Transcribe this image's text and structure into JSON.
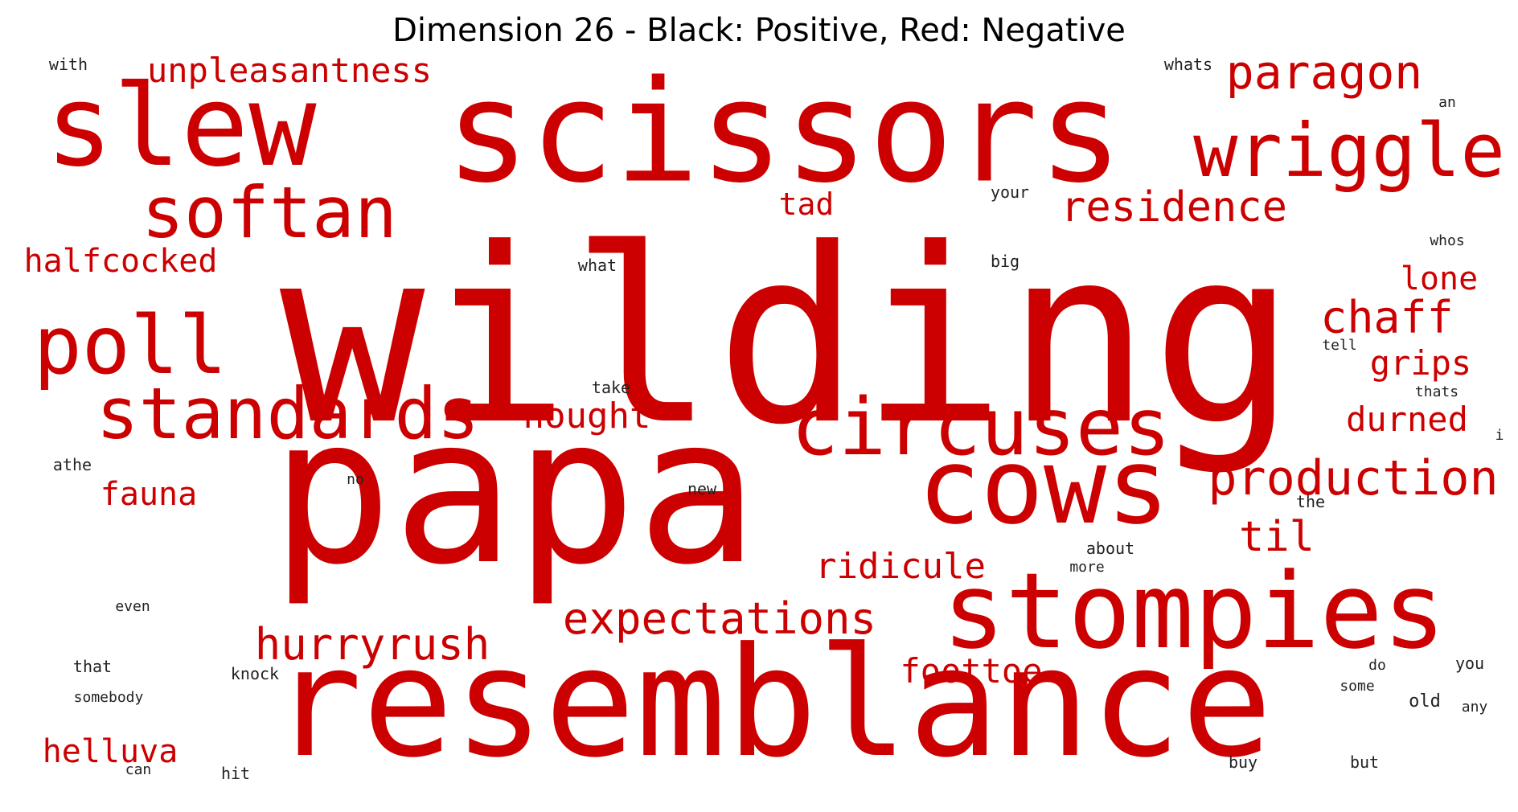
{
  "title": "Dimension 26 - Black: Positive, Red: Negative",
  "colors": {
    "positive": "#222222",
    "negative": "#cc0000"
  },
  "words": [
    {
      "text": "wilding",
      "sign": "negative"
    },
    {
      "text": "papa",
      "sign": "negative"
    },
    {
      "text": "resemblance",
      "sign": "negative"
    },
    {
      "text": "scissors",
      "sign": "negative"
    },
    {
      "text": "slew",
      "sign": "negative"
    },
    {
      "text": "stompies",
      "sign": "negative"
    },
    {
      "text": "cows",
      "sign": "negative"
    },
    {
      "text": "circuses",
      "sign": "negative"
    },
    {
      "text": "wriggle",
      "sign": "negative"
    },
    {
      "text": "poll",
      "sign": "negative"
    },
    {
      "text": "standards",
      "sign": "negative"
    },
    {
      "text": "softan",
      "sign": "negative"
    },
    {
      "text": "production",
      "sign": "negative"
    },
    {
      "text": "paragon",
      "sign": "negative"
    },
    {
      "text": "expectations",
      "sign": "negative"
    },
    {
      "text": "hurryrush",
      "sign": "negative"
    },
    {
      "text": "chaff",
      "sign": "negative"
    },
    {
      "text": "residence",
      "sign": "negative"
    },
    {
      "text": "unpleasantness",
      "sign": "negative"
    },
    {
      "text": "til",
      "sign": "negative"
    },
    {
      "text": "halfcocked",
      "sign": "negative"
    },
    {
      "text": "ridicule",
      "sign": "negative"
    },
    {
      "text": "nought",
      "sign": "negative"
    },
    {
      "text": "foottoe",
      "sign": "negative"
    },
    {
      "text": "helluva",
      "sign": "negative"
    },
    {
      "text": "durned",
      "sign": "negative"
    },
    {
      "text": "grips",
      "sign": "negative"
    },
    {
      "text": "lone",
      "sign": "negative"
    },
    {
      "text": "tad",
      "sign": "negative"
    },
    {
      "text": "fauna",
      "sign": "negative"
    },
    {
      "text": "with",
      "sign": "positive"
    },
    {
      "text": "whats",
      "sign": "positive"
    },
    {
      "text": "an",
      "sign": "positive"
    },
    {
      "text": "your",
      "sign": "positive"
    },
    {
      "text": "whos",
      "sign": "positive"
    },
    {
      "text": "what",
      "sign": "positive"
    },
    {
      "text": "big",
      "sign": "positive"
    },
    {
      "text": "tell",
      "sign": "positive"
    },
    {
      "text": "take",
      "sign": "positive"
    },
    {
      "text": "thats",
      "sign": "positive"
    },
    {
      "text": "i",
      "sign": "positive"
    },
    {
      "text": "athe",
      "sign": "positive"
    },
    {
      "text": "no",
      "sign": "positive"
    },
    {
      "text": "new",
      "sign": "positive"
    },
    {
      "text": "the",
      "sign": "positive"
    },
    {
      "text": "about",
      "sign": "positive"
    },
    {
      "text": "more",
      "sign": "positive"
    },
    {
      "text": "even",
      "sign": "positive"
    },
    {
      "text": "that",
      "sign": "positive"
    },
    {
      "text": "knock",
      "sign": "positive"
    },
    {
      "text": "do",
      "sign": "positive"
    },
    {
      "text": "you",
      "sign": "positive"
    },
    {
      "text": "somebody",
      "sign": "positive"
    },
    {
      "text": "some",
      "sign": "positive"
    },
    {
      "text": "old",
      "sign": "positive"
    },
    {
      "text": "any",
      "sign": "positive"
    },
    {
      "text": "can",
      "sign": "positive"
    },
    {
      "text": "hit",
      "sign": "positive"
    },
    {
      "text": "buy",
      "sign": "positive"
    },
    {
      "text": "but",
      "sign": "positive"
    }
  ]
}
